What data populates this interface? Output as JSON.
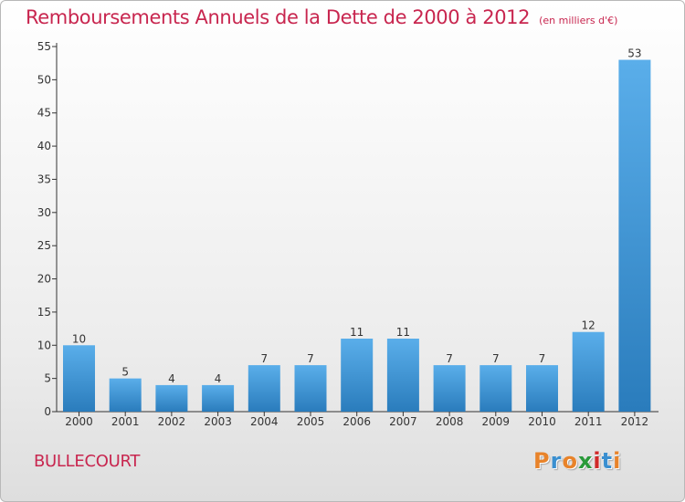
{
  "title": "Remboursements Annuels de la Dette de 2000 à 2012",
  "subtitle": "(en milliers d'€)",
  "town": "BULLECOURT",
  "logo_text": "Proxiti",
  "colors": {
    "accent": "#c8264f",
    "bar_top": "#5aaeea",
    "bar_bottom": "#2a7cbc",
    "logo_letters": [
      "#e8832a",
      "#3a8fd0",
      "#e8832a",
      "#2a9a3a",
      "#d02a2a",
      "#3a8fd0",
      "#e8832a"
    ]
  },
  "chart_data": {
    "type": "bar",
    "title": "Remboursements Annuels de la Dette de 2000 à 2012",
    "xlabel": "",
    "ylabel": "",
    "categories": [
      "2000",
      "2001",
      "2002",
      "2003",
      "2004",
      "2005",
      "2006",
      "2007",
      "2008",
      "2009",
      "2010",
      "2011",
      "2012"
    ],
    "values": [
      10,
      5,
      4,
      4,
      7,
      7,
      11,
      11,
      7,
      7,
      7,
      12,
      53
    ],
    "ylim": [
      0,
      55
    ],
    "yticks": [
      0,
      5,
      10,
      15,
      20,
      25,
      30,
      35,
      40,
      45,
      50,
      55
    ],
    "grid": false,
    "legend": "none"
  }
}
